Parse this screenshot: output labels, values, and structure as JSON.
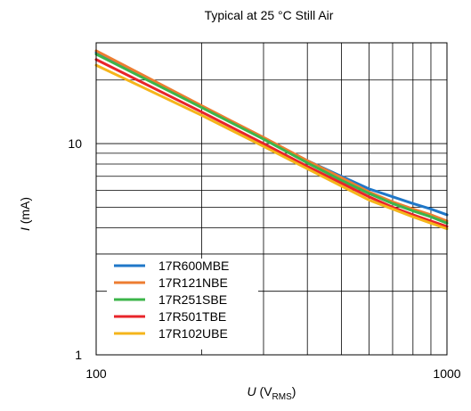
{
  "chart_data": {
    "type": "line",
    "title": "Typical at 25 °C Still Air",
    "xlabel": {
      "var": "U",
      "unit_open": " (V",
      "unit_sub": "RMS",
      "unit_close": ")"
    },
    "ylabel": {
      "var": "I",
      "unit": " (mA)"
    },
    "xscale": "log",
    "yscale": "log",
    "xlim": [
      100,
      1000
    ],
    "ylim": [
      1,
      30
    ],
    "xticks": [
      {
        "value": 100,
        "label": "100"
      },
      {
        "value": 1000,
        "label": "1000"
      }
    ],
    "yticks": [
      {
        "value": 1,
        "label": "1"
      },
      {
        "value": 10,
        "label": "10"
      }
    ],
    "grid": true,
    "legend_position": "bottom-left",
    "x": [
      100,
      200,
      300,
      400,
      500,
      600,
      700,
      800,
      900,
      1000
    ],
    "series": [
      {
        "name": "17R600MBE",
        "color": "#1f77c8",
        "values": [
          27.0,
          15.0,
          10.6,
          8.3,
          7.0,
          6.1,
          5.6,
          5.2,
          4.9,
          4.6
        ]
      },
      {
        "name": "17R121NBE",
        "color": "#ed7d31",
        "values": [
          27.5,
          15.1,
          10.7,
          8.3,
          6.9,
          5.9,
          5.3,
          4.9,
          4.6,
          4.3
        ]
      },
      {
        "name": "17R251SBE",
        "color": "#3cb54a",
        "values": [
          26.5,
          14.8,
          10.5,
          8.1,
          6.7,
          5.8,
          5.2,
          4.8,
          4.5,
          4.2
        ]
      },
      {
        "name": "17R501TBE",
        "color": "#e8242a",
        "values": [
          25.0,
          14.1,
          10.0,
          7.8,
          6.5,
          5.6,
          5.0,
          4.6,
          4.3,
          4.05
        ]
      },
      {
        "name": "17R102UBE",
        "color": "#f5b51b",
        "values": [
          23.5,
          13.6,
          9.7,
          7.6,
          6.3,
          5.4,
          4.9,
          4.5,
          4.2,
          3.95
        ]
      }
    ]
  }
}
